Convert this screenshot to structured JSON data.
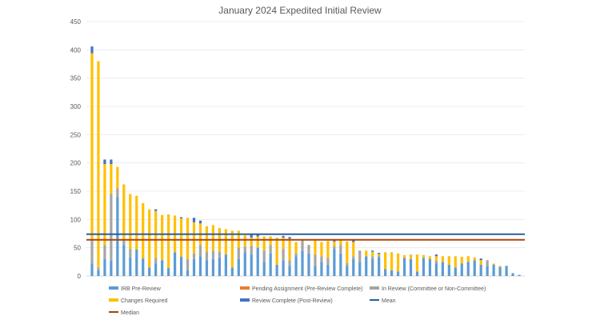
{
  "chart_data": {
    "type": "bar",
    "stacked": true,
    "title": "January 2024 Expedited Initial Review",
    "xlabel": "",
    "ylabel": "",
    "ylim": [
      0,
      450
    ],
    "yticks": [
      0,
      50,
      100,
      150,
      200,
      250,
      300,
      350,
      400,
      450
    ],
    "grid": true,
    "legend_position": "bottom",
    "series": [
      {
        "name": "IRB Pre-Review",
        "color": "#5B9BD5",
        "values": [
          22,
          10,
          30,
          27,
          140,
          55,
          33,
          47,
          31,
          15,
          22,
          28,
          14,
          42,
          34,
          10,
          30,
          35,
          28,
          30,
          33,
          38,
          15,
          30,
          42,
          38,
          50,
          25,
          40,
          20,
          28,
          18,
          35,
          45,
          40,
          18,
          25,
          20,
          48,
          40,
          18,
          30,
          25,
          35,
          30,
          33,
          12,
          10,
          8,
          32,
          30,
          8,
          32,
          30,
          22,
          25,
          20,
          15,
          22,
          25,
          28,
          20,
          18,
          20,
          16,
          18,
          5,
          2
        ]
      },
      {
        "name": "Pending Assignment (Pre-Review Complete)",
        "color": "#ED7D31",
        "values": [
          0,
          0,
          0,
          0,
          0,
          0,
          0,
          0,
          0,
          0,
          0,
          0,
          0,
          0,
          0,
          0,
          0,
          0,
          0,
          0,
          0,
          0,
          0,
          0,
          0,
          0,
          0,
          0,
          0,
          0,
          0,
          0,
          0,
          0,
          0,
          0,
          0,
          0,
          0,
          0,
          0,
          0,
          0,
          0,
          0,
          0,
          0,
          0,
          0,
          0,
          0,
          0,
          0,
          0,
          0,
          0,
          0,
          0,
          0,
          0,
          0,
          0,
          0,
          0,
          0,
          0,
          0,
          0
        ]
      },
      {
        "name": "In Review (Committee or Non-Committee)",
        "color": "#A5A5A5",
        "values": [
          42,
          5,
          25,
          118,
          15,
          10,
          15,
          0,
          0,
          0,
          10,
          0,
          0,
          0,
          0,
          20,
          10,
          20,
          15,
          15,
          10,
          0,
          0,
          20,
          10,
          15,
          0,
          20,
          15,
          0,
          20,
          10,
          5,
          20,
          15,
          20,
          10,
          12,
          5,
          15,
          5,
          5,
          20,
          0,
          5,
          3,
          0,
          0,
          0,
          0,
          0,
          0,
          0,
          0,
          5,
          0,
          0,
          0,
          0,
          0,
          0,
          0,
          10,
          0,
          0,
          0,
          0,
          0
        ]
      },
      {
        "name": "Changes Required",
        "color": "#FFC000",
        "values": [
          330,
          365,
          143,
          53,
          38,
          97,
          97,
          95,
          98,
          103,
          83,
          80,
          95,
          65,
          68,
          73,
          55,
          38,
          45,
          45,
          42,
          45,
          65,
          30,
          20,
          15,
          20,
          25,
          15,
          48,
          20,
          38,
          20,
          0,
          0,
          25,
          25,
          30,
          8,
          10,
          38,
          25,
          0,
          10,
          8,
          3,
          30,
          32,
          32,
          5,
          8,
          30,
          5,
          5,
          8,
          10,
          15,
          20,
          12,
          10,
          5,
          8,
          0,
          2,
          2,
          0,
          0,
          0
        ]
      },
      {
        "name": "Review Complete (Post-Review)",
        "color": "#4472C4",
        "values": [
          12,
          0,
          8,
          8,
          0,
          0,
          0,
          0,
          0,
          0,
          3,
          0,
          0,
          0,
          2,
          0,
          8,
          5,
          0,
          0,
          0,
          0,
          0,
          0,
          0,
          5,
          5,
          0,
          0,
          0,
          3,
          3,
          0,
          0,
          0,
          0,
          0,
          0,
          2,
          0,
          0,
          3,
          0,
          0,
          2,
          2,
          0,
          0,
          0,
          0,
          0,
          0,
          0,
          0,
          3,
          0,
          0,
          0,
          0,
          0,
          0,
          3,
          0,
          0,
          0,
          0,
          0,
          0
        ]
      }
    ],
    "reference_lines": [
      {
        "name": "Mean",
        "value": 74,
        "color": "#2E5E9E"
      },
      {
        "name": "Median",
        "value": 64,
        "color": "#A9450F"
      }
    ],
    "legend": [
      {
        "label": "IRB Pre-Review",
        "color": "#5B9BD5",
        "kind": "bar"
      },
      {
        "label": "Pending Assignment (Pre-Review Complete)",
        "color": "#ED7D31",
        "kind": "bar"
      },
      {
        "label": "In Review (Committee or Non-Committee)",
        "color": "#A5A5A5",
        "kind": "bar"
      },
      {
        "label": "Changes Required",
        "color": "#FFC000",
        "kind": "bar"
      },
      {
        "label": "Review Complete (Post-Review)",
        "color": "#4472C4",
        "kind": "bar"
      },
      {
        "label": "Mean",
        "color": "#2E5E9E",
        "kind": "line"
      },
      {
        "label": "Median",
        "color": "#A9450F",
        "kind": "line"
      }
    ]
  }
}
